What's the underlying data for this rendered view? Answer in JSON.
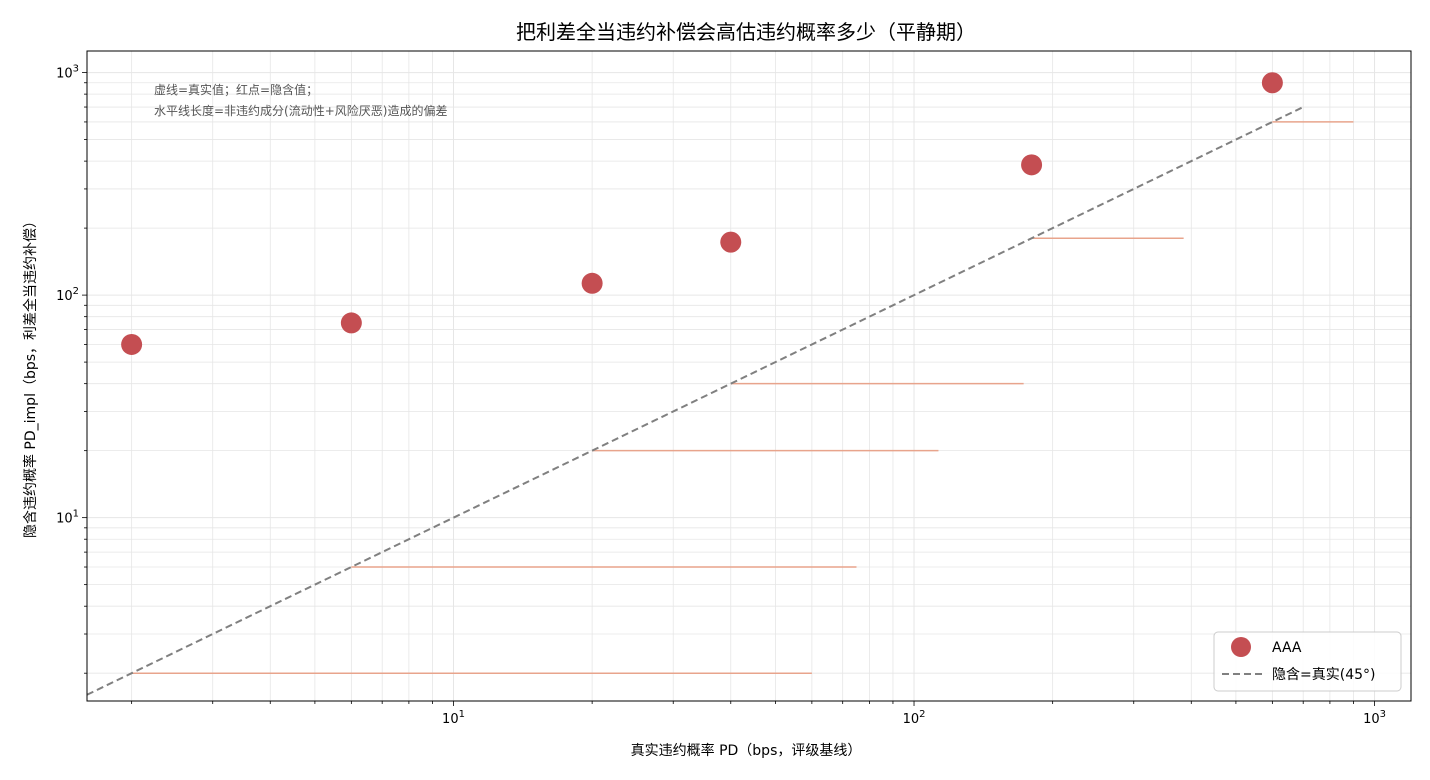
{
  "chart_data": {
    "type": "scatter",
    "title": "把利差全当违约补偿会高估违约概率多少（平静期）",
    "xlabel": "真实违约概率 PD（bps，评级基线）",
    "ylabel": "隐含违约概率 PD_impl（bps，利差全当违约补偿）",
    "xscale": "log",
    "yscale": "log",
    "xlim": [
      1.6,
      1200
    ],
    "ylim": [
      1.5,
      1250
    ],
    "grid": true,
    "x_ticks": [
      {
        "base": "10",
        "exp": "1",
        "value": 10
      },
      {
        "base": "10",
        "exp": "2",
        "value": 100
      },
      {
        "base": "10",
        "exp": "3",
        "value": 1000
      }
    ],
    "y_ticks": [
      {
        "base": "10",
        "exp": "1",
        "value": 10
      },
      {
        "base": "10",
        "exp": "2",
        "value": 100
      },
      {
        "base": "10",
        "exp": "3",
        "value": 1000
      }
    ],
    "annotation": [
      "虚线=真实值；红点=隐含值；",
      "水平线长度=非违约成分(流动性+风险厌恶)造成的偏差"
    ],
    "series": [
      {
        "name": "AAA",
        "kind": "scatter",
        "color": "#c44e52",
        "x": [
          2,
          6,
          20,
          40,
          180,
          600
        ],
        "y": [
          60,
          75,
          113,
          173,
          385,
          900
        ]
      },
      {
        "name": "隐含=真实(45°)",
        "kind": "reference-line",
        "color": "#808080",
        "x": [
          1.6,
          700
        ],
        "y": [
          1.6,
          700
        ]
      }
    ],
    "bias_segments": {
      "color": "#e8a48c",
      "items": [
        {
          "y": 2,
          "x_start": 2,
          "x_end": 60
        },
        {
          "y": 6,
          "x_start": 6,
          "x_end": 75
        },
        {
          "y": 20,
          "x_start": 20,
          "x_end": 113
        },
        {
          "y": 40,
          "x_start": 40,
          "x_end": 173
        },
        {
          "y": 180,
          "x_start": 180,
          "x_end": 385
        },
        {
          "y": 600,
          "x_start": 600,
          "x_end": 900
        }
      ]
    },
    "legend": {
      "position": "lower right",
      "entries": [
        {
          "label": "AAA",
          "marker": "circle",
          "color": "#c44e52"
        },
        {
          "label": "隐含=真实(45°)",
          "marker": "dashed-line",
          "color": "#808080"
        }
      ]
    }
  }
}
